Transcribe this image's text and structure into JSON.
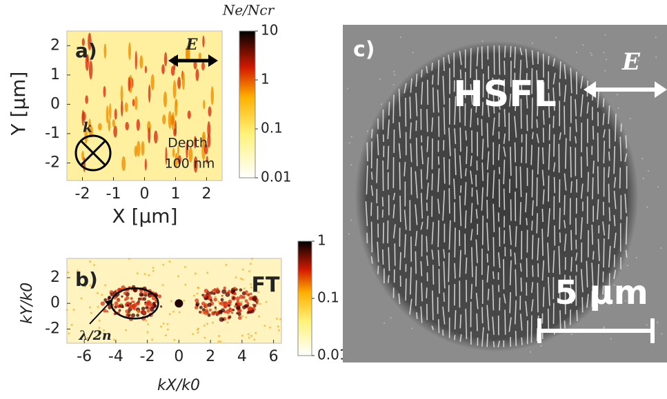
{
  "chart_data": [
    {
      "type": "heatmap",
      "panel_label": "a)",
      "xlabel": "X [µm]",
      "ylabel": "Y [µm]",
      "xlim": [
        -2.5,
        2.5
      ],
      "ylim": [
        -2.6,
        2.5
      ],
      "xticks": [
        -2,
        -1,
        0,
        1,
        2
      ],
      "yticks": [
        -2,
        -1,
        0,
        1,
        2
      ],
      "vector_labels": [
        "E",
        "k"
      ],
      "annotations": [
        "Depth",
        "100 nm"
      ],
      "colorbar": {
        "title": "Ne/Ncr",
        "scale": "log",
        "lim": [
          0.01,
          10
        ],
        "ticks": [
          10,
          1,
          0.1,
          0.01
        ]
      }
    },
    {
      "type": "heatmap",
      "panel_label": "b)",
      "xlabel": "kX/k0",
      "ylabel": "kY/k0",
      "xlim": [
        -7.1,
        6.5
      ],
      "ylim": [
        -3.1,
        3.5
      ],
      "xticks": [
        -6,
        -4,
        -2,
        0,
        2,
        4,
        6
      ],
      "yticks": [
        -2,
        0,
        2
      ],
      "annotations": [
        "FT",
        "λ/2n"
      ],
      "colorbar": {
        "scale": "log",
        "lim": [
          0.01,
          1
        ],
        "ticks": [
          1,
          0.1,
          0.01
        ]
      }
    },
    {
      "type": "image",
      "panel_label": "c)",
      "vector_label": "E",
      "annotations": [
        "HSFL",
        "5 µm"
      ]
    }
  ]
}
